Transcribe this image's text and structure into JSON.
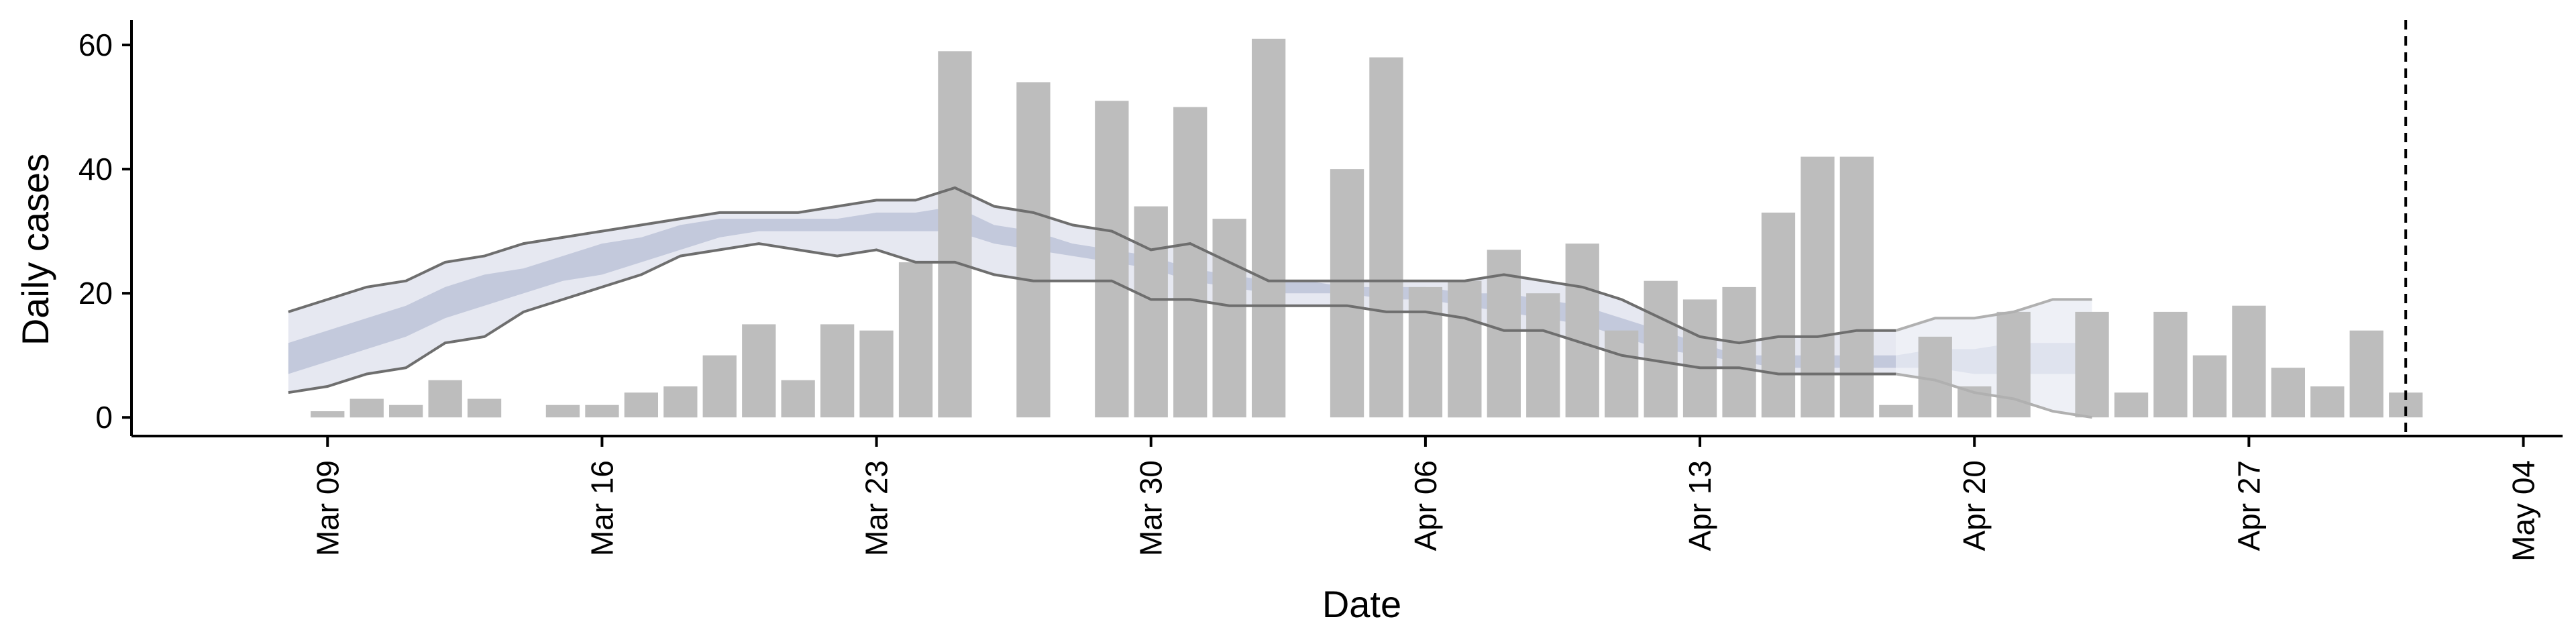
{
  "chart_data": {
    "type": "bar",
    "xlabel": "Date",
    "ylabel": "Daily cases",
    "ylim": [
      -3,
      64
    ],
    "xlim": [
      "2020-03-04",
      "2020-05-05"
    ],
    "x_ticks": [
      "2020-03-09",
      "2020-03-16",
      "2020-03-23",
      "2020-03-30",
      "2020-04-06",
      "2020-04-13",
      "2020-04-20",
      "2020-04-27",
      "2020-05-04"
    ],
    "x_tick_labels": [
      "Mar 09",
      "Mar 16",
      "Mar 23",
      "Mar 30",
      "Apr 06",
      "Apr 13",
      "Apr 20",
      "Apr 27",
      "May 04"
    ],
    "y_ticks": [
      0,
      20,
      40,
      60
    ],
    "grid": false,
    "vline_date": "2020-05-01",
    "bar_color": "#bdbdbd",
    "bars": {
      "x": [
        "2020-03-09",
        "2020-03-10",
        "2020-03-11",
        "2020-03-12",
        "2020-03-13",
        "2020-03-14",
        "2020-03-15",
        "2020-03-16",
        "2020-03-17",
        "2020-03-18",
        "2020-03-19",
        "2020-03-20",
        "2020-03-21",
        "2020-03-22",
        "2020-03-23",
        "2020-03-24",
        "2020-03-25",
        "2020-03-26",
        "2020-03-27",
        "2020-03-28",
        "2020-03-29",
        "2020-03-30",
        "2020-03-31",
        "2020-04-01",
        "2020-04-02",
        "2020-04-03",
        "2020-04-04",
        "2020-04-05",
        "2020-04-06",
        "2020-04-07",
        "2020-04-08",
        "2020-04-09",
        "2020-04-10",
        "2020-04-11",
        "2020-04-12",
        "2020-04-13",
        "2020-04-14",
        "2020-04-15",
        "2020-04-16",
        "2020-04-17",
        "2020-04-18",
        "2020-04-19",
        "2020-04-20",
        "2020-04-21",
        "2020-04-22",
        "2020-04-23",
        "2020-04-24",
        "2020-04-25",
        "2020-04-26",
        "2020-04-27",
        "2020-04-28",
        "2020-04-29",
        "2020-04-30",
        "2020-05-01"
      ],
      "values": [
        1,
        3,
        2,
        6,
        3,
        0,
        2,
        2,
        4,
        5,
        10,
        15,
        6,
        15,
        14,
        25,
        59,
        0,
        54,
        0,
        51,
        34,
        50,
        32,
        61,
        0,
        40,
        58,
        21,
        22,
        27,
        20,
        28,
        14,
        22,
        19,
        21,
        33,
        42,
        42,
        2,
        13,
        5,
        17,
        0,
        17,
        4,
        17,
        10,
        18,
        8,
        5,
        14,
        4
      ]
    },
    "bands": [
      {
        "fill": "#e6e8f1",
        "x": [
          "2020-03-08",
          "2020-03-09",
          "2020-03-10",
          "2020-03-11",
          "2020-03-12",
          "2020-03-13",
          "2020-03-14",
          "2020-03-15",
          "2020-03-16",
          "2020-03-17",
          "2020-03-18",
          "2020-03-19",
          "2020-03-20",
          "2020-03-21",
          "2020-03-22",
          "2020-03-23",
          "2020-03-24",
          "2020-03-25",
          "2020-03-26",
          "2020-03-27",
          "2020-03-28",
          "2020-03-29",
          "2020-03-30",
          "2020-03-31",
          "2020-04-01",
          "2020-04-02",
          "2020-04-03",
          "2020-04-04",
          "2020-04-05",
          "2020-04-06",
          "2020-04-07",
          "2020-04-08",
          "2020-04-09",
          "2020-04-10",
          "2020-04-11",
          "2020-04-12",
          "2020-04-13",
          "2020-04-14",
          "2020-04-15",
          "2020-04-16",
          "2020-04-17",
          "2020-04-18"
        ],
        "upper": [
          17,
          19,
          21,
          22,
          25,
          26,
          28,
          29,
          30,
          31,
          32,
          33,
          33,
          33,
          34,
          35,
          35,
          37,
          34,
          33,
          31,
          30,
          27,
          28,
          25,
          22,
          22,
          22,
          22,
          22,
          22,
          23,
          22,
          21,
          19,
          16,
          13,
          12,
          13,
          13,
          14,
          14
        ],
        "lower": [
          4,
          5,
          7,
          8,
          12,
          13,
          17,
          19,
          21,
          23,
          26,
          27,
          28,
          27,
          26,
          27,
          25,
          25,
          23,
          22,
          22,
          22,
          19,
          19,
          18,
          18,
          18,
          18,
          17,
          17,
          16,
          14,
          14,
          12,
          10,
          9,
          8,
          8,
          7,
          7,
          7,
          7
        ]
      },
      {
        "fill": "#c3c9dc",
        "x": [
          "2020-03-08",
          "2020-03-09",
          "2020-03-10",
          "2020-03-11",
          "2020-03-12",
          "2020-03-13",
          "2020-03-14",
          "2020-03-15",
          "2020-03-16",
          "2020-03-17",
          "2020-03-18",
          "2020-03-19",
          "2020-03-20",
          "2020-03-21",
          "2020-03-22",
          "2020-03-23",
          "2020-03-24",
          "2020-03-25",
          "2020-03-26",
          "2020-03-27",
          "2020-03-28",
          "2020-03-29",
          "2020-03-30",
          "2020-03-31",
          "2020-04-01",
          "2020-04-02",
          "2020-04-03",
          "2020-04-04",
          "2020-04-05",
          "2020-04-06",
          "2020-04-07",
          "2020-04-08",
          "2020-04-09",
          "2020-04-10",
          "2020-04-11",
          "2020-04-12",
          "2020-04-13",
          "2020-04-14",
          "2020-04-15",
          "2020-04-16",
          "2020-04-17",
          "2020-04-18"
        ],
        "upper": [
          12,
          14,
          16,
          18,
          21,
          23,
          24,
          26,
          28,
          29,
          31,
          32,
          32,
          32,
          32,
          33,
          33,
          34,
          31,
          30,
          28,
          27,
          26,
          24,
          23,
          22,
          22,
          21,
          21,
          21,
          20,
          20,
          19,
          18,
          16,
          14,
          12,
          10,
          10,
          10,
          10,
          10
        ],
        "lower": [
          7,
          9,
          11,
          13,
          16,
          18,
          20,
          22,
          23,
          25,
          27,
          29,
          30,
          30,
          30,
          30,
          30,
          30,
          28,
          27,
          26,
          25,
          24,
          22,
          21,
          20,
          20,
          20,
          19,
          19,
          18,
          17,
          16,
          15,
          13,
          11,
          10,
          9,
          8,
          8,
          8,
          8
        ]
      },
      {
        "fill": "#eef0f6",
        "x": [
          "2020-04-18",
          "2020-04-19",
          "2020-04-20",
          "2020-04-21",
          "2020-04-22",
          "2020-04-23"
        ],
        "upper": [
          14,
          16,
          16,
          17,
          19,
          19
        ],
        "lower": [
          7,
          6,
          4,
          3,
          1,
          0
        ]
      },
      {
        "fill": "#dfe3ee",
        "x": [
          "2020-04-18",
          "2020-04-19",
          "2020-04-20",
          "2020-04-21",
          "2020-04-22",
          "2020-04-23"
        ],
        "upper": [
          10,
          11,
          11,
          12,
          12,
          12
        ],
        "lower": [
          8,
          8,
          7,
          7,
          7,
          7
        ]
      }
    ],
    "lines": [
      {
        "color": "#6e6e6e",
        "x": [
          "2020-03-08",
          "2020-03-09",
          "2020-03-10",
          "2020-03-11",
          "2020-03-12",
          "2020-03-13",
          "2020-03-14",
          "2020-03-15",
          "2020-03-16",
          "2020-03-17",
          "2020-03-18",
          "2020-03-19",
          "2020-03-20",
          "2020-03-21",
          "2020-03-22",
          "2020-03-23",
          "2020-03-24",
          "2020-03-25",
          "2020-03-26",
          "2020-03-27",
          "2020-03-28",
          "2020-03-29",
          "2020-03-30",
          "2020-03-31",
          "2020-04-01",
          "2020-04-02",
          "2020-04-03",
          "2020-04-04",
          "2020-04-05",
          "2020-04-06",
          "2020-04-07",
          "2020-04-08",
          "2020-04-09",
          "2020-04-10",
          "2020-04-11",
          "2020-04-12",
          "2020-04-13",
          "2020-04-14",
          "2020-04-15",
          "2020-04-16",
          "2020-04-17",
          "2020-04-18"
        ],
        "y": [
          17,
          19,
          21,
          22,
          25,
          26,
          28,
          29,
          30,
          31,
          32,
          33,
          33,
          33,
          34,
          35,
          35,
          37,
          34,
          33,
          31,
          30,
          27,
          28,
          25,
          22,
          22,
          22,
          22,
          22,
          22,
          23,
          22,
          21,
          19,
          16,
          13,
          12,
          13,
          13,
          14,
          14
        ]
      },
      {
        "color": "#6e6e6e",
        "x": [
          "2020-03-08",
          "2020-03-09",
          "2020-03-10",
          "2020-03-11",
          "2020-03-12",
          "2020-03-13",
          "2020-03-14",
          "2020-03-15",
          "2020-03-16",
          "2020-03-17",
          "2020-03-18",
          "2020-03-19",
          "2020-03-20",
          "2020-03-21",
          "2020-03-22",
          "2020-03-23",
          "2020-03-24",
          "2020-03-25",
          "2020-03-26",
          "2020-03-27",
          "2020-03-28",
          "2020-03-29",
          "2020-03-30",
          "2020-03-31",
          "2020-04-01",
          "2020-04-02",
          "2020-04-03",
          "2020-04-04",
          "2020-04-05",
          "2020-04-06",
          "2020-04-07",
          "2020-04-08",
          "2020-04-09",
          "2020-04-10",
          "2020-04-11",
          "2020-04-12",
          "2020-04-13",
          "2020-04-14",
          "2020-04-15",
          "2020-04-16",
          "2020-04-17",
          "2020-04-18"
        ],
        "y": [
          4,
          5,
          7,
          8,
          12,
          13,
          17,
          19,
          21,
          23,
          26,
          27,
          28,
          27,
          26,
          27,
          25,
          25,
          23,
          22,
          22,
          22,
          19,
          19,
          18,
          18,
          18,
          18,
          17,
          17,
          16,
          14,
          14,
          12,
          10,
          9,
          8,
          8,
          7,
          7,
          7,
          7
        ]
      },
      {
        "color": "#b0b0b0",
        "x": [
          "2020-04-18",
          "2020-04-19",
          "2020-04-20",
          "2020-04-21",
          "2020-04-22",
          "2020-04-23"
        ],
        "y": [
          14,
          16,
          16,
          17,
          19,
          19
        ]
      },
      {
        "color": "#b0b0b0",
        "x": [
          "2020-04-18",
          "2020-04-19",
          "2020-04-20",
          "2020-04-21",
          "2020-04-22",
          "2020-04-23"
        ],
        "y": [
          7,
          6,
          4,
          3,
          1,
          0
        ]
      }
    ]
  }
}
